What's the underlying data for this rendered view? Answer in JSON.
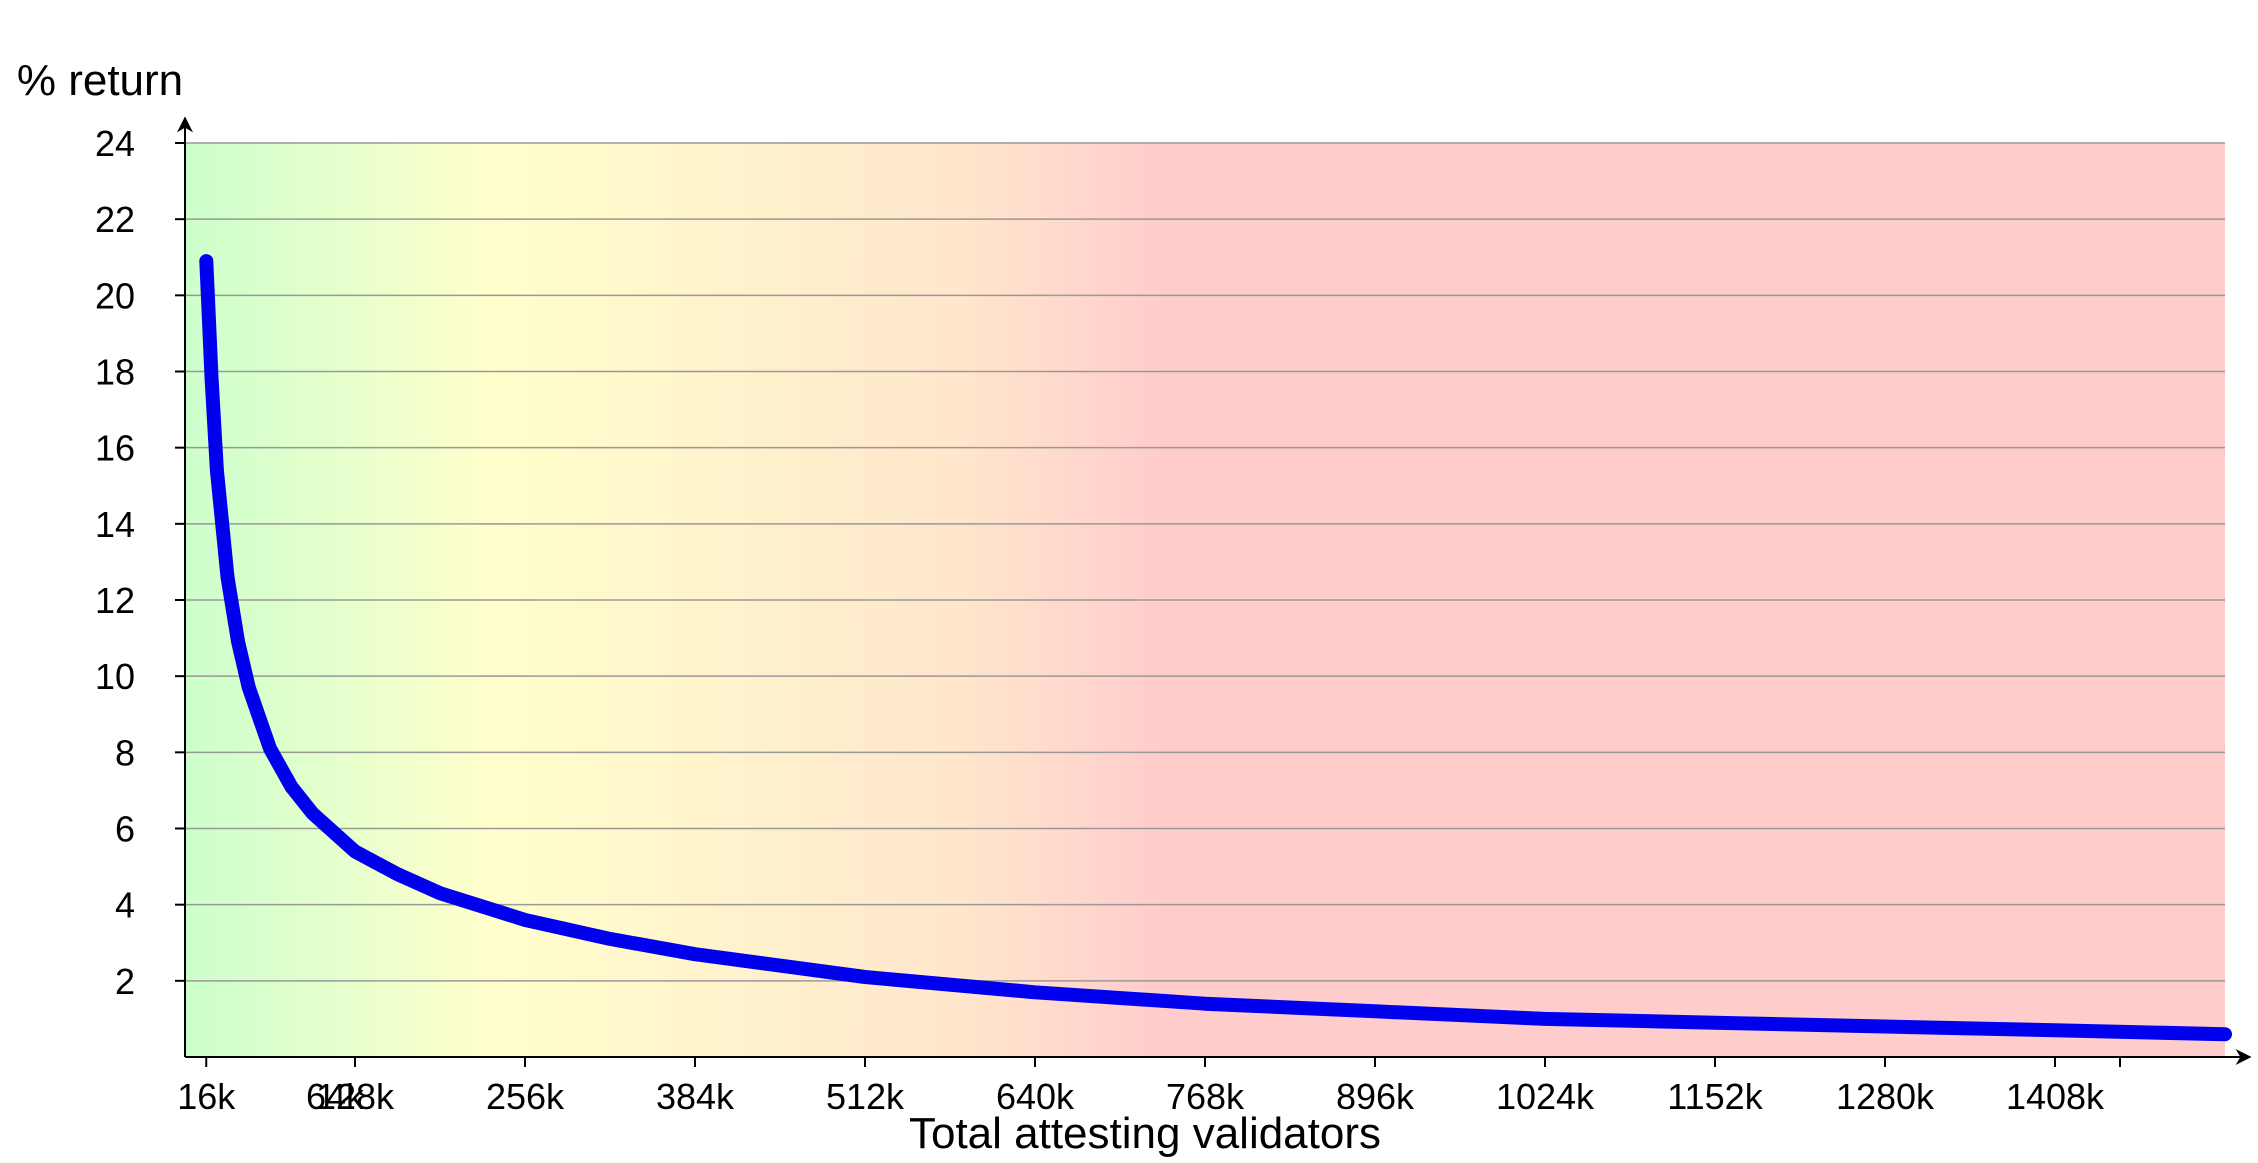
{
  "chart_data": {
    "type": "line",
    "title": "",
    "ylabel": "% return",
    "xlabel": "Total attesting validators",
    "xlim": [
      0,
      1536
    ],
    "ylim": [
      0,
      24
    ],
    "x_ticks": [
      {
        "value": 16,
        "label": "16k"
      },
      {
        "value": 128,
        "label": "128k"
      },
      {
        "value": 256,
        "label": "256k"
      },
      {
        "value": 384,
        "label": "384k"
      },
      {
        "value": 512,
        "label": "512k"
      },
      {
        "value": 640,
        "label": "640k"
      },
      {
        "value": 768,
        "label": "768k"
      },
      {
        "value": 896,
        "label": "896k"
      },
      {
        "value": 1024,
        "label": "1024k"
      },
      {
        "value": 1152,
        "label": "1152k"
      },
      {
        "value": 1280,
        "label": "1280k"
      },
      {
        "value": 1408,
        "label": "1408k"
      }
    ],
    "x_extra_labels": [
      {
        "value": 64,
        "label": "64k"
      }
    ],
    "y_ticks": [
      2,
      4,
      6,
      8,
      10,
      12,
      14,
      16,
      18,
      20,
      22,
      24
    ],
    "grid": true,
    "background_gradient": [
      "#ccffcc",
      "#ffffcc",
      "#ffe6cc",
      "#ffcccc"
    ],
    "series": [
      {
        "color": "#0000ee",
        "x": [
          16,
          20,
          24,
          32,
          40,
          48,
          64,
          80,
          96,
          128,
          160,
          192,
          256,
          320,
          384,
          448,
          512,
          640,
          768,
          896,
          1024,
          1152,
          1280,
          1408,
          1536
        ],
        "y": [
          20.9,
          17.8,
          15.4,
          12.6,
          10.9,
          9.7,
          8.1,
          7.1,
          6.4,
          5.4,
          4.8,
          4.3,
          3.6,
          3.1,
          2.7,
          2.4,
          2.1,
          1.7,
          1.4,
          1.2,
          1.0,
          0.9,
          0.8,
          0.7,
          0.6
        ]
      }
    ]
  }
}
